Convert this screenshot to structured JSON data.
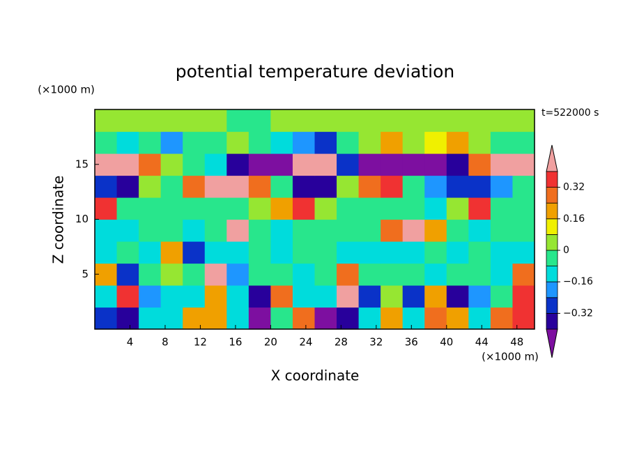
{
  "chart_data": {
    "type": "contourf",
    "title": "potential temperature deviation",
    "x_label": "X coordinate",
    "y_label": "Z coordinate",
    "x_unit": "(×1000 m)",
    "y_unit": "(×1000 m)",
    "time_label": "t=522000 s",
    "xlim": [
      0,
      50
    ],
    "ylim": [
      0,
      20
    ],
    "xticks": [
      4,
      8,
      12,
      16,
      20,
      24,
      28,
      32,
      36,
      40,
      44,
      48
    ],
    "yticks": [
      5,
      10,
      15
    ],
    "x": [
      1.25,
      3.75,
      6.25,
      8.75,
      11.25,
      13.75,
      16.25,
      18.75,
      21.25,
      23.75,
      26.25,
      28.75,
      31.25,
      33.75,
      36.25,
      38.75,
      41.25,
      43.75,
      46.25,
      48.75
    ],
    "y": [
      1,
      3,
      5,
      7,
      9,
      11,
      13,
      15,
      17,
      19
    ],
    "z": [
      [
        -0.28,
        -0.36,
        -0.12,
        -0.12,
        0.2,
        0.2,
        -0.12,
        -0.45,
        -0.04,
        0.28,
        -0.45,
        -0.36,
        -0.12,
        0.2,
        -0.12,
        0.28,
        0.2,
        -0.12,
        0.28,
        0.36
      ],
      [
        -0.12,
        0.36,
        -0.2,
        -0.12,
        -0.12,
        0.2,
        -0.12,
        -0.36,
        0.28,
        -0.12,
        -0.12,
        0.45,
        -0.28,
        0.04,
        -0.28,
        0.2,
        -0.36,
        -0.2,
        -0.04,
        0.36
      ],
      [
        0.2,
        -0.28,
        -0.04,
        0.04,
        -0.04,
        0.45,
        -0.2,
        -0.04,
        -0.04,
        -0.12,
        -0.04,
        0.28,
        -0.04,
        -0.04,
        -0.04,
        -0.12,
        -0.04,
        -0.04,
        -0.12,
        0.28
      ],
      [
        -0.12,
        -0.04,
        -0.12,
        0.2,
        -0.28,
        -0.12,
        -0.12,
        -0.04,
        -0.12,
        -0.04,
        -0.04,
        -0.12,
        -0.12,
        -0.12,
        -0.12,
        -0.04,
        -0.12,
        -0.04,
        -0.12,
        -0.12
      ],
      [
        -0.12,
        -0.12,
        -0.04,
        -0.04,
        -0.12,
        -0.04,
        0.45,
        -0.04,
        -0.12,
        -0.04,
        -0.04,
        -0.04,
        -0.04,
        0.28,
        0.45,
        0.2,
        -0.04,
        -0.12,
        -0.04,
        -0.04
      ],
      [
        0.36,
        -0.04,
        -0.04,
        -0.04,
        -0.04,
        -0.04,
        -0.04,
        0.04,
        0.2,
        0.36,
        0.04,
        -0.04,
        -0.04,
        -0.04,
        -0.04,
        -0.12,
        0.04,
        0.36,
        -0.04,
        -0.04
      ],
      [
        -0.28,
        -0.36,
        0.04,
        -0.04,
        0.28,
        0.45,
        0.45,
        0.28,
        -0.04,
        -0.36,
        -0.36,
        0.04,
        0.28,
        0.36,
        -0.04,
        -0.2,
        -0.28,
        -0.28,
        -0.2,
        -0.04
      ],
      [
        0.45,
        0.45,
        0.28,
        0.04,
        -0.04,
        -0.12,
        -0.36,
        -0.45,
        -0.45,
        0.45,
        0.45,
        -0.28,
        -0.45,
        -0.45,
        -0.45,
        -0.45,
        -0.36,
        0.28,
        0.45,
        0.45
      ],
      [
        -0.04,
        -0.12,
        -0.04,
        -0.2,
        -0.04,
        -0.04,
        0.04,
        -0.04,
        -0.12,
        -0.2,
        -0.28,
        -0.04,
        0.04,
        0.2,
        0.04,
        0.12,
        0.2,
        0.04,
        -0.04,
        -0.04
      ],
      [
        0.04,
        0.04,
        0.04,
        0.04,
        0.04,
        0.04,
        -0.04,
        -0.04,
        0.04,
        0.04,
        0.04,
        0.04,
        0.04,
        0.04,
        0.04,
        0.04,
        0.04,
        0.04,
        0.04,
        0.04
      ]
    ],
    "levels": [
      -0.4,
      -0.32,
      -0.24,
      -0.16,
      -0.08,
      0,
      0.08,
      0.16,
      0.24,
      0.32,
      0.4
    ],
    "colors": [
      "#7d0fa0",
      "#28009b",
      "#0a32c8",
      "#1e96ff",
      "#00dcdc",
      "#28e68c",
      "#96e632",
      "#f0f000",
      "#f0a000",
      "#f06e1e",
      "#f03232",
      "#f0a0a0"
    ],
    "colorbar_ticks": [
      0.32,
      0.16,
      0,
      {
        "value": -0.16,
        "label": "−0.16"
      },
      {
        "value": -0.32,
        "label": "−0.32"
      }
    ]
  }
}
